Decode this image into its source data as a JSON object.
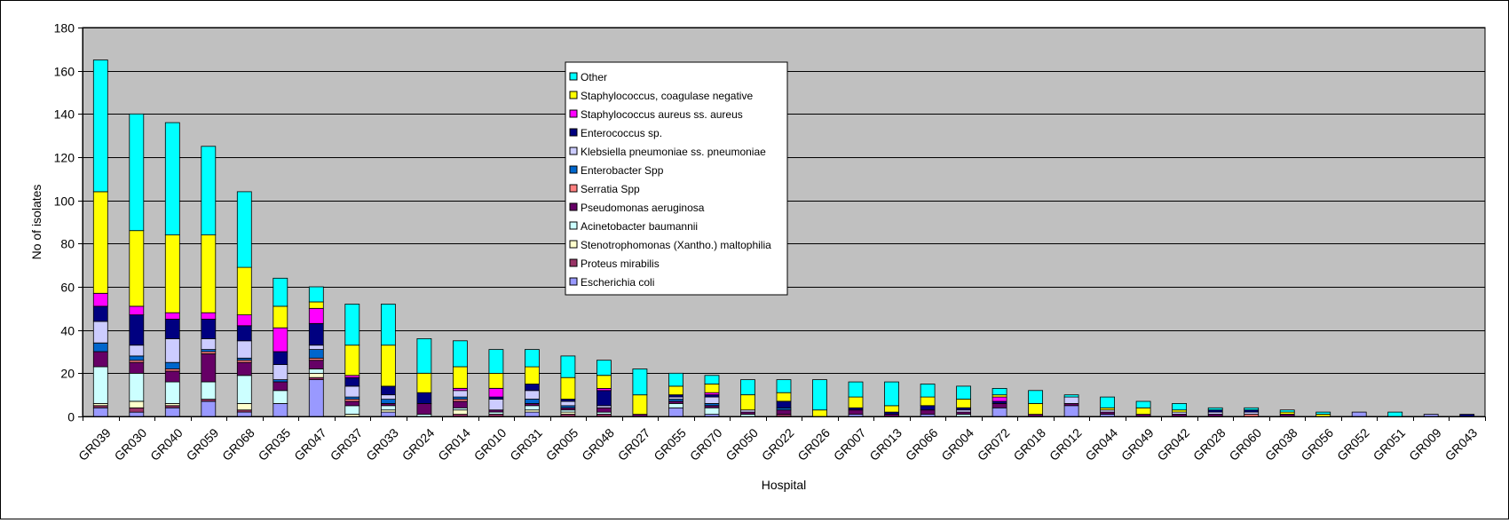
{
  "chart_data": {
    "type": "bar",
    "stacked": true,
    "title": "",
    "xlabel": "Hospital",
    "ylabel": "No of isolates",
    "ylim": [
      0,
      180
    ],
    "yticks": [
      0,
      20,
      40,
      60,
      80,
      100,
      120,
      140,
      160,
      180
    ],
    "grid": true,
    "legend_position": "top-center",
    "categories": [
      "GR039",
      "GR030",
      "GR040",
      "GR059",
      "GR068",
      "GR035",
      "GR047",
      "GR037",
      "GR033",
      "GR024",
      "GR014",
      "GR010",
      "GR031",
      "GR005",
      "GR048",
      "GR027",
      "GR055",
      "GR070",
      "GR050",
      "GR022",
      "GR026",
      "GR007",
      "GR013",
      "GR066",
      "GR004",
      "GR072",
      "GR018",
      "GR012",
      "GR044",
      "GR049",
      "GR042",
      "GR028",
      "GR060",
      "GR038",
      "GR056",
      "GR052",
      "GR051",
      "GR009",
      "GR043"
    ],
    "series": [
      {
        "name": "Escherichia coli",
        "color": "#9999FF",
        "values": [
          4,
          2,
          4,
          7,
          2,
          6,
          17,
          0,
          2,
          0,
          0,
          0,
          2,
          0,
          0,
          0,
          4,
          1,
          0,
          0,
          0,
          1,
          0,
          1,
          0,
          4,
          0,
          5,
          1,
          0,
          0,
          0,
          0,
          0,
          0,
          2,
          0,
          1,
          0
        ]
      },
      {
        "name": "Proteus mirabilis",
        "color": "#993366",
        "values": [
          1,
          2,
          1,
          1,
          1,
          0,
          1,
          0,
          0,
          0,
          1,
          1,
          0,
          1,
          1,
          0,
          0,
          0,
          0,
          1,
          0,
          0,
          0,
          0,
          0,
          0,
          0,
          0,
          0,
          0,
          0,
          0,
          0,
          0,
          0,
          0,
          0,
          0,
          0
        ]
      },
      {
        "name": "Stenotrophomonas (Xantho.) maltophilia",
        "color": "#FFFFCC",
        "values": [
          1,
          3,
          1,
          0,
          3,
          0,
          2,
          1,
          1,
          0,
          2,
          0,
          1,
          1,
          0,
          0,
          0,
          0,
          0,
          0,
          0,
          0,
          0,
          0,
          0,
          0,
          0,
          0,
          0,
          0,
          0,
          0,
          0,
          0,
          0,
          0,
          0,
          0,
          0
        ]
      },
      {
        "name": "Acinetobacter baumannii",
        "color": "#CCFFFF",
        "values": [
          17,
          13,
          10,
          8,
          13,
          6,
          2,
          4,
          2,
          1,
          1,
          1,
          2,
          1,
          1,
          0,
          2,
          3,
          1,
          0,
          0,
          0,
          0,
          0,
          1,
          0,
          0,
          0,
          0,
          0,
          0,
          0,
          0,
          0,
          0,
          0,
          0,
          0,
          0
        ]
      },
      {
        "name": "Pseudomonas aeruginosa",
        "color": "#660066",
        "values": [
          7,
          5,
          5,
          13,
          6,
          4,
          4,
          2,
          1,
          5,
          3,
          1,
          1,
          1,
          2,
          1,
          1,
          1,
          1,
          2,
          0,
          2,
          1,
          2,
          1,
          2,
          1,
          1,
          1,
          1,
          1,
          1,
          0,
          1,
          0,
          0,
          0,
          0,
          0
        ]
      },
      {
        "name": "Serratia Spp",
        "color": "#FF8080",
        "values": [
          0,
          1,
          1,
          1,
          1,
          0,
          1,
          1,
          0,
          0,
          1,
          0,
          0,
          0,
          0,
          0,
          0,
          0,
          0,
          0,
          0,
          0,
          0,
          0,
          0,
          0,
          0,
          0,
          0,
          0,
          0,
          0,
          1,
          0,
          0,
          0,
          0,
          0,
          0
        ]
      },
      {
        "name": "Enterobacter Spp",
        "color": "#0066CC",
        "values": [
          4,
          2,
          3,
          1,
          1,
          1,
          4,
          1,
          2,
          0,
          1,
          0,
          2,
          1,
          0,
          0,
          1,
          1,
          0,
          1,
          0,
          0,
          0,
          0,
          0,
          0,
          0,
          0,
          0,
          0,
          0,
          0,
          0,
          0,
          0,
          0,
          0,
          0,
          0
        ]
      },
      {
        "name": "Klebsiella pneumoniae ss. pneumoniae",
        "color": "#CCCCFF",
        "values": [
          10,
          5,
          11,
          5,
          8,
          7,
          2,
          5,
          2,
          0,
          3,
          5,
          4,
          2,
          1,
          0,
          1,
          3,
          1,
          0,
          0,
          0,
          0,
          0,
          1,
          0,
          0,
          3,
          1,
          0,
          1,
          1,
          1,
          0,
          0,
          0,
          0,
          0,
          0
        ]
      },
      {
        "name": "Enterococcus sp.",
        "color": "#000080",
        "values": [
          7,
          14,
          9,
          9,
          7,
          6,
          10,
          4,
          4,
          5,
          0,
          1,
          3,
          1,
          7,
          0,
          1,
          1,
          0,
          3,
          0,
          1,
          1,
          2,
          1,
          1,
          0,
          0,
          0,
          0,
          0,
          1,
          1,
          0,
          0,
          0,
          0,
          0,
          1
        ]
      },
      {
        "name": "Staphylococcus aureus ss. aureus",
        "color": "#FF00FF",
        "values": [
          6,
          4,
          3,
          3,
          5,
          11,
          7,
          1,
          0,
          0,
          1,
          4,
          0,
          0,
          1,
          0,
          0,
          1,
          0,
          0,
          0,
          0,
          0,
          0,
          0,
          2,
          0,
          0,
          0,
          0,
          0,
          0,
          0,
          0,
          0,
          0,
          0,
          0,
          0
        ]
      },
      {
        "name": "Staphylococcus, coagulase negative",
        "color": "#FFFF00",
        "values": [
          47,
          35,
          36,
          36,
          22,
          10,
          3,
          14,
          19,
          9,
          10,
          7,
          8,
          10,
          6,
          9,
          4,
          4,
          7,
          4,
          3,
          5,
          3,
          4,
          4,
          1,
          5,
          0,
          1,
          3,
          1,
          0,
          0,
          1,
          1,
          0,
          0,
          0,
          0
        ]
      },
      {
        "name": "Other",
        "color": "#00FFFF",
        "values": [
          61,
          54,
          52,
          41,
          35,
          13,
          7,
          19,
          19,
          16,
          12,
          11,
          8,
          10,
          7,
          12,
          6,
          4,
          7,
          6,
          14,
          7,
          11,
          6,
          6,
          3,
          6,
          1,
          5,
          3,
          3,
          1,
          1,
          1,
          1,
          0,
          2,
          0,
          0
        ]
      }
    ],
    "colors": {
      "plot_background": "#C0C0C0",
      "grid": "#000000",
      "outline": "#000000"
    }
  }
}
